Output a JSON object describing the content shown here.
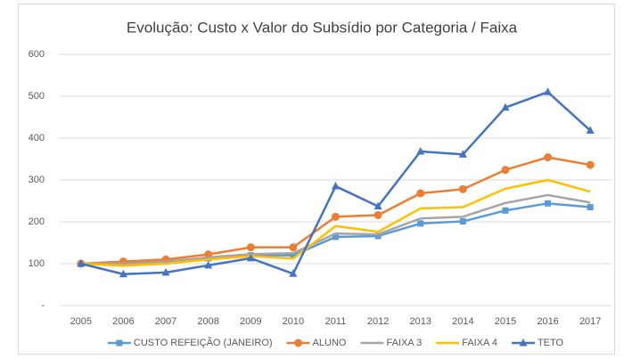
{
  "chart_data": {
    "type": "line",
    "title": "Evolução: Custo x Valor do Subsídio por Categoria / Faixa",
    "categories": [
      "2005",
      "2006",
      "2007",
      "2008",
      "2009",
      "2010",
      "2011",
      "2012",
      "2013",
      "2014",
      "2015",
      "2016",
      "2017"
    ],
    "ylim": [
      0,
      600
    ],
    "yticks": [
      {
        "value": 0,
        "label": "-"
      },
      100,
      200,
      300,
      400,
      500,
      600
    ],
    "grid": true,
    "legend": "bottom",
    "series": [
      {
        "name": "CUSTO REFEIÇÃO (JANEIRO)",
        "color": "#5b9bd5",
        "marker": "square",
        "values": [
          100,
          100,
          105,
          113,
          120,
          120,
          164,
          166,
          196,
          201,
          227,
          244,
          235
        ]
      },
      {
        "name": "ALUNO",
        "color": "#ed7d31",
        "marker": "circle",
        "values": [
          100,
          105,
          110,
          122,
          139,
          139,
          212,
          216,
          268,
          278,
          324,
          354,
          336
        ]
      },
      {
        "name": "FAIXA 3",
        "color": "#a5a5a5",
        "marker": "none",
        "values": [
          100,
          100,
          105,
          115,
          123,
          125,
          172,
          170,
          208,
          212,
          245,
          264,
          246
        ]
      },
      {
        "name": "FAIXA 4",
        "color": "#ffc000",
        "marker": "none",
        "values": [
          100,
          95,
          100,
          110,
          118,
          112,
          190,
          176,
          232,
          235,
          279,
          300,
          272
        ]
      },
      {
        "name": "TETO",
        "color": "#4472c4",
        "marker": "triangle",
        "values": [
          100,
          75,
          79,
          96,
          113,
          76,
          285,
          237,
          368,
          361,
          473,
          510,
          418
        ]
      }
    ]
  }
}
